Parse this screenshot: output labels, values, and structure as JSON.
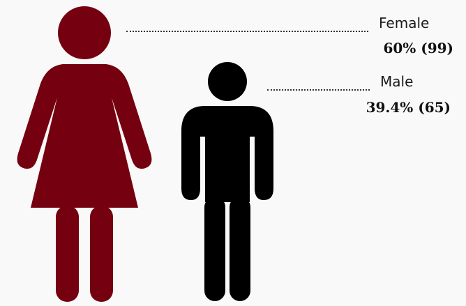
{
  "chart_data": {
    "type": "pictograph",
    "title": "",
    "series": [
      {
        "name": "Female",
        "percent": 60,
        "count": 99,
        "value_text": "60% (99)",
        "color": "#750010",
        "icon": "female-figure-icon"
      },
      {
        "name": "Male",
        "percent": 39.4,
        "count": 65,
        "value_text": "39.4% (65)",
        "color": "#000000",
        "icon": "male-figure-icon"
      }
    ]
  }
}
